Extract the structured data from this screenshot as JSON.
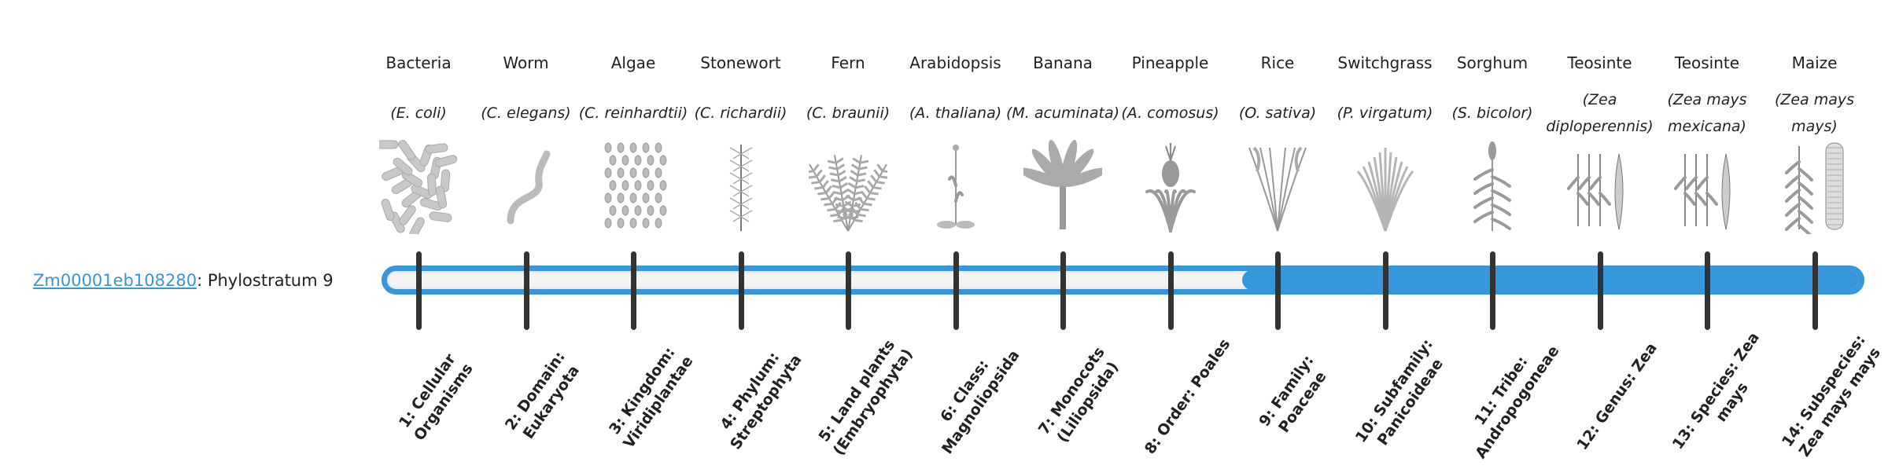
{
  "gene": {
    "id": "Zm00001eb108280",
    "suffix": ": Phylostratum 9",
    "phylostratum": 9
  },
  "colors": {
    "accent": "#3697db",
    "track": "#f4f4f4",
    "tick": "#333333"
  },
  "organisms": [
    {
      "common": "Bacteria",
      "scientific": "(E. coli)",
      "icon": "bacteria-illustration"
    },
    {
      "common": "Worm",
      "scientific": "(C. elegans)",
      "icon": "worm-illustration"
    },
    {
      "common": "Algae",
      "scientific": "(C. reinhardtii)",
      "icon": "algae-illustration"
    },
    {
      "common": "Stonewort",
      "scientific": "(C. richardii)",
      "icon": "stonewort-illustration"
    },
    {
      "common": "Fern",
      "scientific": "(C. braunii)",
      "icon": "fern-illustration"
    },
    {
      "common": "Arabidopsis",
      "scientific": "(A. thaliana)",
      "icon": "arabidopsis-illustration"
    },
    {
      "common": "Banana",
      "scientific": "(M. acuminata)",
      "icon": "banana-illustration"
    },
    {
      "common": "Pineapple",
      "scientific": "(A. comosus)",
      "icon": "pineapple-illustration"
    },
    {
      "common": "Rice",
      "scientific": "(O. sativa)",
      "icon": "rice-illustration"
    },
    {
      "common": "Switchgrass",
      "scientific": "(P. virgatum)",
      "icon": "switchgrass-illustration"
    },
    {
      "common": "Sorghum",
      "scientific": "(S. bicolor)",
      "icon": "sorghum-illustration"
    },
    {
      "common": "Teosinte",
      "scientific": "(Zea diploperennis)",
      "icon": "teosinte-illustration"
    },
    {
      "common": "Teosinte",
      "scientific": "(Zea mays mexicana)",
      "icon": "teosinte-illustration"
    },
    {
      "common": "Maize",
      "scientific": "(Zea mays mays)",
      "icon": "maize-illustration"
    }
  ],
  "strata": [
    "1: Cellular Organisms",
    "2: Domain: Eukaryota",
    "3: Kingdom: Viridiplantae",
    "4: Phylum: Streptophyta",
    "5: Land plants (Embryophyta)",
    "6: Class: Magnoliopsida",
    "7: Monocots (Liliopsida)",
    "8: Order: Poales",
    "9: Family: Poaceae",
    "10: Subfamily: Panicoideae",
    "11: Tribe: Andropogoneae",
    "12: Genus: Zea",
    "13: Species: Zea mays",
    "14: Subspecies: Zea mays mays"
  ]
}
